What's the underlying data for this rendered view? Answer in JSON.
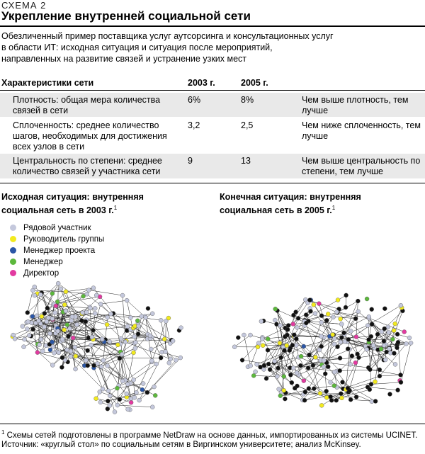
{
  "header": {
    "scheme_label": "СХЕМА 2",
    "title": "Укрепление внутренней социальной сети"
  },
  "intro": "Обезличенный пример поставщика услуг аутсорсинга и консультационных услуг в области ИТ: исходная ситуация и ситуация после мероприятий, направленных на развитие связей и устранение узких мест",
  "table": {
    "headers": [
      "Характеристики сети",
      "2003 г.",
      "2005 г."
    ],
    "rows": [
      {
        "metric": "Плотность: общая мера количества связей в сети",
        "v2003": "6%",
        "v2005": "8%",
        "note": "Чем выше плотность, тем лучше"
      },
      {
        "metric": "Сплоченность: среднее количество шагов, необходимых для достижения всех узлов в сети",
        "v2003": "3,2",
        "v2005": "2,5",
        "note": "Чем ниже сплоченность, тем лучше"
      },
      {
        "metric": "Центральность по степени: среднее количество связей у участника сети",
        "v2003": "9",
        "v2005": "13",
        "note": "Чем выше центральность по степени, тем лучше"
      }
    ]
  },
  "networks": {
    "left_title_line1": "Исходная ситуация: внутренняя",
    "left_title_line2": "социальная сеть в 2003 г.",
    "right_title_line1": "Конечная ситуация: внутренняя",
    "right_title_line2": "социальная сеть в 2005 г.",
    "footnote_mark": "1"
  },
  "legend": [
    {
      "label": "Рядовой участник",
      "color": "#c4c8dc"
    },
    {
      "label": "Руководитель группы",
      "color": "#f2ea1e"
    },
    {
      "label": "Менеджер проекта",
      "color": "#2b56a6"
    },
    {
      "label": "Менеджер",
      "color": "#5cb83c"
    },
    {
      "label": "Директор",
      "color": "#e23aa0"
    }
  ],
  "footnotes": {
    "note1_mark": "1",
    "note1": "Схемы сетей подготовлены в программе NetDraw на основе данных, импортированных из системы UCINET.",
    "source": "Источник: «круглый стол» по социальным сетям в Виргинском университете; анализ McKinsey."
  }
}
